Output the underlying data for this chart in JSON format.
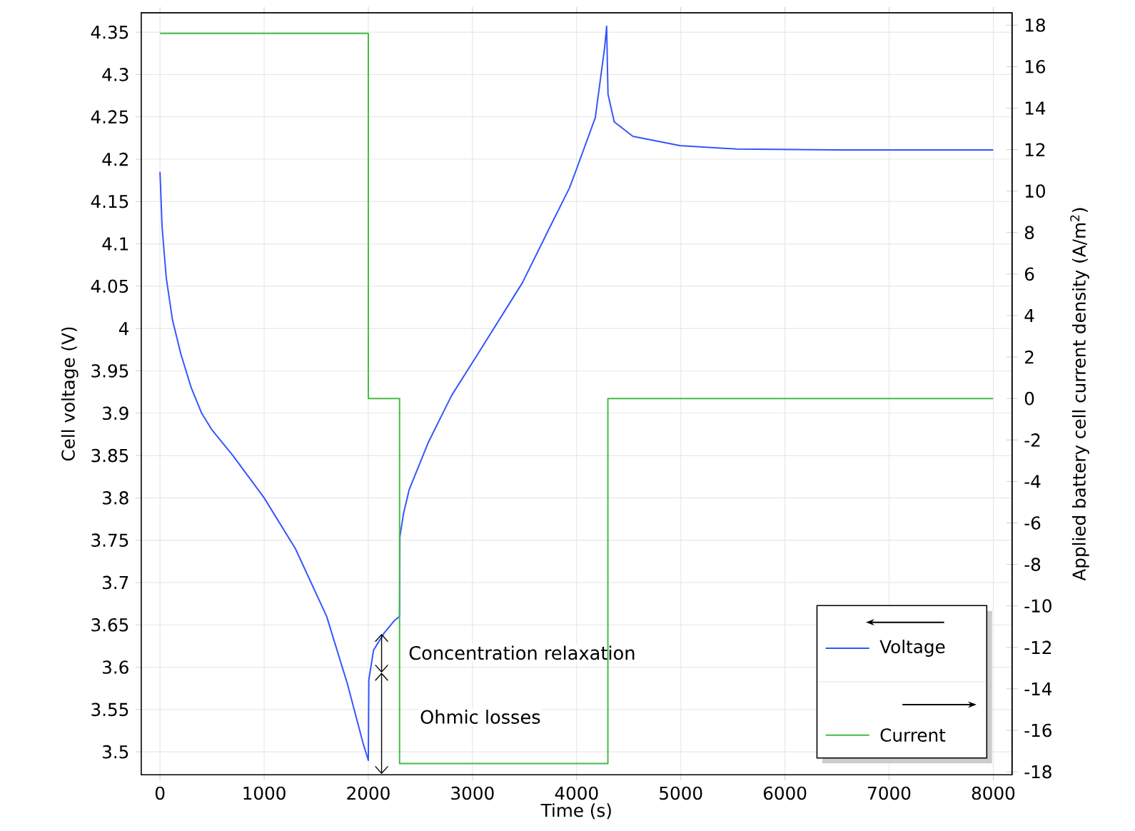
{
  "chart_data": {
    "type": "line",
    "xlabel": "Time (s)",
    "ylabel": "Cell voltage (V)",
    "y2label": "Applied battery cell current density (A/m$^{2}$)",
    "xlim": [
      -180,
      8180
    ],
    "xticks": [
      0,
      1000,
      2000,
      3000,
      4000,
      5000,
      6000,
      7000,
      8000
    ],
    "ylim": [
      3.473,
      4.373
    ],
    "yticks": [
      3.5,
      3.55,
      3.6,
      3.65,
      3.7,
      3.75,
      3.8,
      3.85,
      3.9,
      3.95,
      4,
      4.05,
      4.1,
      4.15,
      4.2,
      4.25,
      4.3,
      4.35
    ],
    "y2lim": [
      -18.14,
      18.6
    ],
    "y2ticks": [
      -18,
      -16,
      -14,
      -12,
      -10,
      -8,
      -6,
      -4,
      -2,
      0,
      2,
      4,
      6,
      8,
      10,
      12,
      14,
      16,
      18
    ],
    "grid": true,
    "legend": "bottom right",
    "series": [
      {
        "name": "Voltage",
        "color": "#3355ff",
        "x": [
          0,
          20,
          60,
          120,
          200,
          300,
          400,
          500,
          700,
          1000,
          1300,
          1600,
          1800,
          1950,
          2000,
          2005,
          2050,
          2150,
          2250,
          2300,
          2303,
          2339,
          2393,
          2574,
          2800,
          3026,
          3479,
          3724,
          3931,
          3998,
          4179,
          4270,
          4288,
          4301,
          4361,
          4541,
          4993,
          5536,
          6500,
          8000
        ],
        "values": [
          4.185,
          4.12,
          4.06,
          4.01,
          3.97,
          3.93,
          3.9,
          3.88,
          3.85,
          3.8,
          3.74,
          3.66,
          3.58,
          3.51,
          3.49,
          3.585,
          3.62,
          3.64,
          3.655,
          3.66,
          3.754,
          3.782,
          3.81,
          3.865,
          3.921,
          3.965,
          4.054,
          4.115,
          4.166,
          4.188,
          4.249,
          4.333,
          4.357,
          4.277,
          4.244,
          4.227,
          4.216,
          4.212,
          4.211,
          4.211
        ]
      },
      {
        "name": "Current",
        "color": "#44bb44",
        "axis": "y2",
        "x": [
          0,
          2000,
          2000,
          2300,
          2300,
          4300,
          4300,
          8000
        ],
        "values": [
          17.6,
          17.6,
          0,
          0,
          -17.6,
          -17.6,
          0,
          0
        ]
      }
    ],
    "annotations": [
      "Concentration relaxation",
      "Ohmic losses"
    ]
  }
}
